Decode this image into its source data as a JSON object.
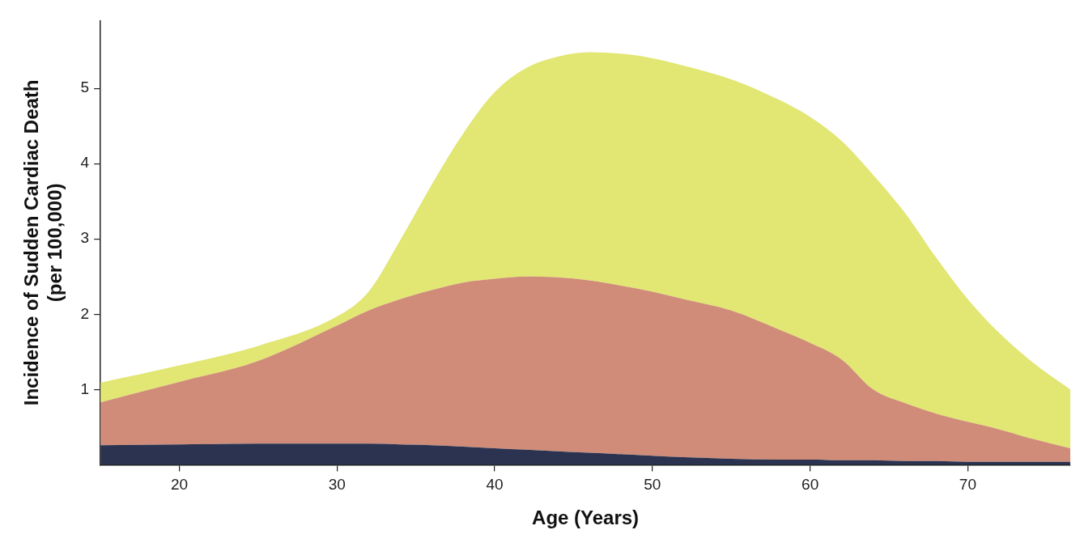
{
  "chart_data": {
    "type": "area",
    "stacked": true,
    "xlabel": "Age (Years)",
    "ylabel": "Incidence of Sudden Cardiac Death\n(per 100,000)",
    "x": [
      15,
      20,
      25,
      30,
      32,
      34,
      36,
      38,
      40,
      42,
      44,
      46,
      48,
      50,
      52,
      55,
      58,
      60,
      62,
      64,
      66,
      68,
      70,
      72,
      74,
      76.5
    ],
    "xlim": [
      15,
      76.5
    ],
    "xticks": [
      20,
      30,
      40,
      50,
      60,
      70
    ],
    "ylim": [
      0,
      5.9
    ],
    "yticks": [
      1,
      2,
      3,
      4,
      5
    ],
    "grid": false,
    "legend": false,
    "series": [
      {
        "color": "#2b3350",
        "values": [
          0.26,
          0.27,
          0.28,
          0.28,
          0.28,
          0.27,
          0.26,
          0.24,
          0.22,
          0.2,
          0.18,
          0.16,
          0.14,
          0.12,
          0.1,
          0.08,
          0.07,
          0.07,
          0.06,
          0.06,
          0.05,
          0.05,
          0.04,
          0.04,
          0.04,
          0.04
        ]
      },
      {
        "color": "#d08c78",
        "values": [
          0.57,
          0.83,
          1.1,
          1.57,
          1.77,
          1.93,
          2.06,
          2.18,
          2.25,
          2.3,
          2.31,
          2.29,
          2.24,
          2.18,
          2.1,
          1.97,
          1.73,
          1.55,
          1.34,
          0.94,
          0.77,
          0.63,
          0.53,
          0.43,
          0.31,
          0.18
        ]
      },
      {
        "color": "#e2e672",
        "values": [
          0.26,
          0.22,
          0.2,
          0.12,
          0.25,
          0.78,
          1.4,
          1.98,
          2.48,
          2.77,
          2.93,
          3.03,
          3.08,
          3.1,
          3.1,
          3.07,
          3.05,
          3.0,
          2.9,
          2.85,
          2.53,
          2.07,
          1.63,
          1.28,
          1.03,
          0.78
        ]
      }
    ]
  }
}
